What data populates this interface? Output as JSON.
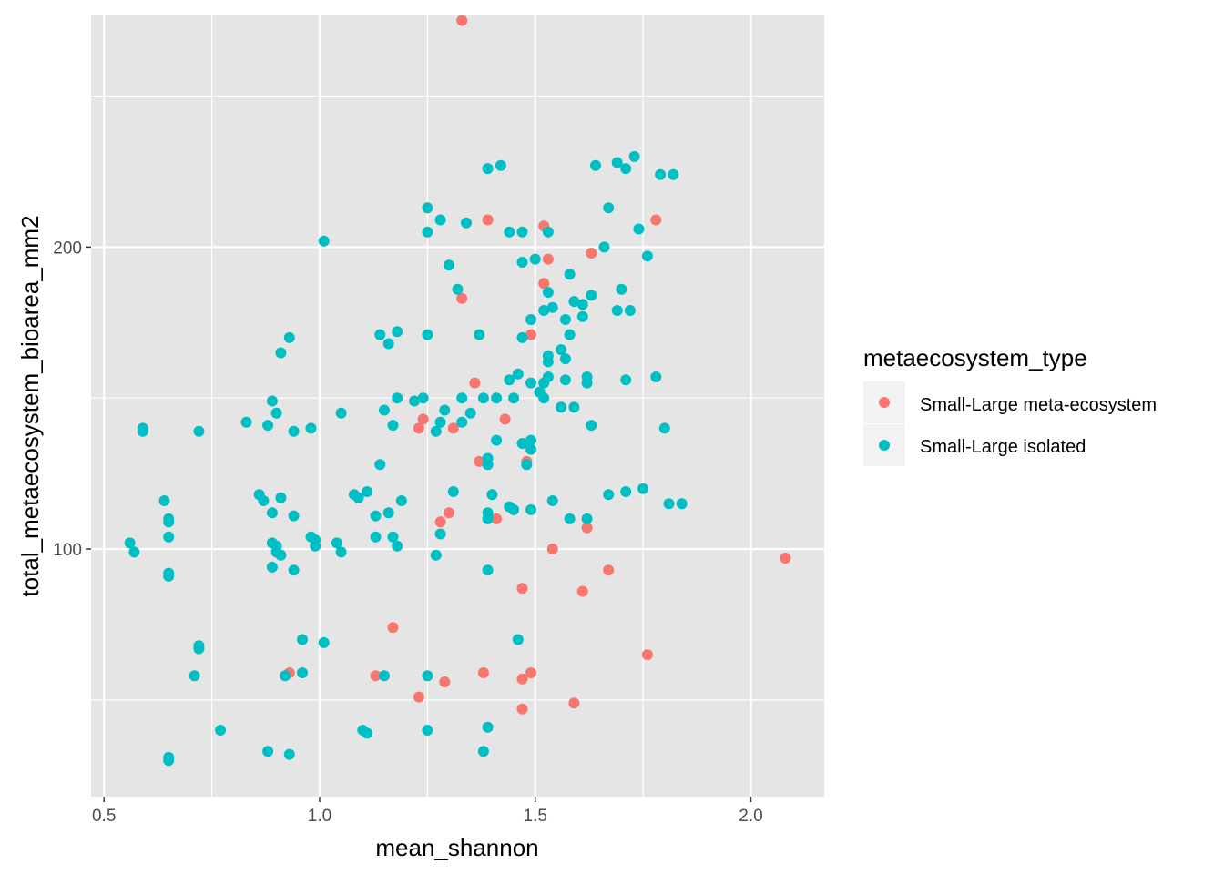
{
  "chart_data": {
    "type": "scatter",
    "title": "",
    "xlabel": "mean_shannon",
    "ylabel": "total_metaecosystem_bioarea_mm2",
    "xlim": [
      0.47,
      2.17
    ],
    "ylim": [
      18,
      277
    ],
    "x_ticks": [
      0.5,
      1.0,
      1.5,
      2.0
    ],
    "x_tick_labels": [
      "0.5",
      "1.0",
      "1.5",
      "2.0"
    ],
    "y_ticks": [
      100,
      200
    ],
    "y_tick_labels": [
      "100",
      "200"
    ],
    "grid": true,
    "panel_background": "#e5e5e5",
    "legend": {
      "title": "metaecosystem_type",
      "placement": "right",
      "entries": [
        "Small-Large meta-ecosystem",
        "Small-Large isolated"
      ]
    },
    "series": [
      {
        "name": "Small-Large meta-ecosystem",
        "color": "#f8766d",
        "points": [
          [
            1.33,
            275
          ],
          [
            1.39,
            209
          ],
          [
            1.52,
            207
          ],
          [
            1.78,
            209
          ],
          [
            1.53,
            196
          ],
          [
            1.63,
            198
          ],
          [
            1.52,
            188
          ],
          [
            1.33,
            183
          ],
          [
            1.49,
            171
          ],
          [
            1.36,
            155
          ],
          [
            1.24,
            143
          ],
          [
            1.23,
            140
          ],
          [
            1.31,
            140
          ],
          [
            1.43,
            143
          ],
          [
            1.37,
            129
          ],
          [
            1.48,
            129
          ],
          [
            1.3,
            112
          ],
          [
            1.28,
            109
          ],
          [
            1.41,
            110
          ],
          [
            1.62,
            107
          ],
          [
            1.54,
            100
          ],
          [
            1.67,
            93
          ],
          [
            1.47,
            87
          ],
          [
            1.61,
            86
          ],
          [
            1.17,
            74
          ],
          [
            1.76,
            65
          ],
          [
            0.93,
            59
          ],
          [
            1.13,
            58
          ],
          [
            1.29,
            56
          ],
          [
            1.38,
            59
          ],
          [
            1.47,
            57
          ],
          [
            1.49,
            59
          ],
          [
            1.23,
            51
          ],
          [
            1.47,
            47
          ],
          [
            1.59,
            49
          ],
          [
            2.08,
            97
          ],
          [
            2.08,
            97
          ]
        ]
      },
      {
        "name": "Small-Large isolated",
        "color": "#00bfc4",
        "points": [
          [
            1.39,
            226
          ],
          [
            1.42,
            227
          ],
          [
            1.64,
            227
          ],
          [
            1.69,
            228
          ],
          [
            1.73,
            230
          ],
          [
            1.71,
            226
          ],
          [
            1.79,
            224
          ],
          [
            1.82,
            224
          ],
          [
            1.25,
            213
          ],
          [
            1.28,
            209
          ],
          [
            1.34,
            208
          ],
          [
            1.67,
            213
          ],
          [
            1.25,
            205
          ],
          [
            1.44,
            205
          ],
          [
            1.47,
            205
          ],
          [
            1.53,
            205
          ],
          [
            1.74,
            206
          ],
          [
            1.01,
            202
          ],
          [
            1.3,
            194
          ],
          [
            1.47,
            195
          ],
          [
            1.5,
            196
          ],
          [
            1.66,
            200
          ],
          [
            1.76,
            197
          ],
          [
            1.32,
            186
          ],
          [
            1.58,
            191
          ],
          [
            1.7,
            186
          ],
          [
            1.53,
            185
          ],
          [
            1.63,
            184
          ],
          [
            1.59,
            182
          ],
          [
            1.61,
            181
          ],
          [
            1.54,
            180
          ],
          [
            1.69,
            179
          ],
          [
            1.72,
            179
          ],
          [
            1.52,
            179
          ],
          [
            1.49,
            176
          ],
          [
            1.57,
            176
          ],
          [
            1.61,
            177
          ],
          [
            0.93,
            170
          ],
          [
            1.14,
            171
          ],
          [
            1.18,
            172
          ],
          [
            1.25,
            171
          ],
          [
            1.37,
            171
          ],
          [
            1.47,
            170
          ],
          [
            1.58,
            171
          ],
          [
            1.16,
            168
          ],
          [
            0.91,
            165
          ],
          [
            1.56,
            166
          ],
          [
            1.53,
            164
          ],
          [
            1.57,
            163
          ],
          [
            1.53,
            162
          ],
          [
            1.46,
            158
          ],
          [
            1.78,
            157
          ],
          [
            1.44,
            156
          ],
          [
            1.49,
            155
          ],
          [
            1.52,
            155
          ],
          [
            1.53,
            157
          ],
          [
            1.57,
            156
          ],
          [
            1.62,
            157
          ],
          [
            1.71,
            156
          ],
          [
            1.51,
            152
          ],
          [
            1.62,
            155
          ],
          [
            1.18,
            150
          ],
          [
            1.22,
            149
          ],
          [
            1.24,
            150
          ],
          [
            1.33,
            150
          ],
          [
            1.38,
            150
          ],
          [
            1.41,
            150
          ],
          [
            1.45,
            150
          ],
          [
            1.52,
            150
          ],
          [
            1.56,
            147
          ],
          [
            1.59,
            147
          ],
          [
            0.89,
            149
          ],
          [
            1.15,
            146
          ],
          [
            1.29,
            146
          ],
          [
            1.35,
            145
          ],
          [
            0.9,
            145
          ],
          [
            1.05,
            145
          ],
          [
            1.28,
            142
          ],
          [
            1.33,
            142
          ],
          [
            0.59,
            140
          ],
          [
            0.59,
            139
          ],
          [
            0.72,
            139
          ],
          [
            0.83,
            142
          ],
          [
            0.88,
            141
          ],
          [
            0.94,
            139
          ],
          [
            0.98,
            140
          ],
          [
            1.17,
            141
          ],
          [
            1.27,
            139
          ],
          [
            1.41,
            136
          ],
          [
            1.47,
            135
          ],
          [
            1.49,
            136
          ],
          [
            1.49,
            133
          ],
          [
            1.63,
            141
          ],
          [
            1.8,
            140
          ],
          [
            1.14,
            128
          ],
          [
            1.39,
            130
          ],
          [
            1.39,
            128
          ],
          [
            1.48,
            128
          ],
          [
            1.31,
            119
          ],
          [
            1.4,
            118
          ],
          [
            1.08,
            118
          ],
          [
            1.09,
            117
          ],
          [
            1.11,
            119
          ],
          [
            1.19,
            116
          ],
          [
            0.86,
            118
          ],
          [
            0.87,
            116
          ],
          [
            0.91,
            117
          ],
          [
            0.64,
            116
          ],
          [
            1.44,
            114
          ],
          [
            1.45,
            113
          ],
          [
            1.49,
            113
          ],
          [
            1.54,
            116
          ],
          [
            1.67,
            118
          ],
          [
            1.71,
            119
          ],
          [
            1.75,
            120
          ],
          [
            1.81,
            115
          ],
          [
            1.84,
            115
          ],
          [
            0.89,
            112
          ],
          [
            0.94,
            111
          ],
          [
            1.13,
            111
          ],
          [
            1.16,
            112
          ],
          [
            1.39,
            112
          ],
          [
            1.39,
            110
          ],
          [
            1.58,
            110
          ],
          [
            1.62,
            110
          ],
          [
            0.65,
            110
          ],
          [
            0.65,
            109
          ],
          [
            1.28,
            105
          ],
          [
            0.98,
            104
          ],
          [
            0.99,
            103
          ],
          [
            1.13,
            104
          ],
          [
            1.17,
            104
          ],
          [
            0.89,
            102
          ],
          [
            0.9,
            101
          ],
          [
            0.99,
            101
          ],
          [
            1.04,
            102
          ],
          [
            1.18,
            101
          ],
          [
            0.56,
            102
          ],
          [
            0.57,
            99
          ],
          [
            1.05,
            99
          ],
          [
            0.9,
            99
          ],
          [
            0.91,
            98
          ],
          [
            0.65,
            104
          ],
          [
            1.27,
            98
          ],
          [
            0.65,
            92
          ],
          [
            0.65,
            91
          ],
          [
            0.89,
            94
          ],
          [
            0.94,
            93
          ],
          [
            1.39,
            93
          ],
          [
            0.96,
            70
          ],
          [
            1.01,
            69
          ],
          [
            1.46,
            70
          ],
          [
            0.72,
            68
          ],
          [
            0.72,
            67
          ],
          [
            0.71,
            58
          ],
          [
            0.92,
            58
          ],
          [
            0.96,
            59
          ],
          [
            1.15,
            58
          ],
          [
            1.25,
            58
          ],
          [
            0.77,
            40
          ],
          [
            1.1,
            40
          ],
          [
            1.11,
            39
          ],
          [
            1.25,
            40
          ],
          [
            1.39,
            41
          ],
          [
            0.88,
            33
          ],
          [
            0.93,
            32
          ],
          [
            1.38,
            33
          ],
          [
            0.65,
            31
          ],
          [
            0.65,
            30
          ]
        ]
      }
    ]
  }
}
